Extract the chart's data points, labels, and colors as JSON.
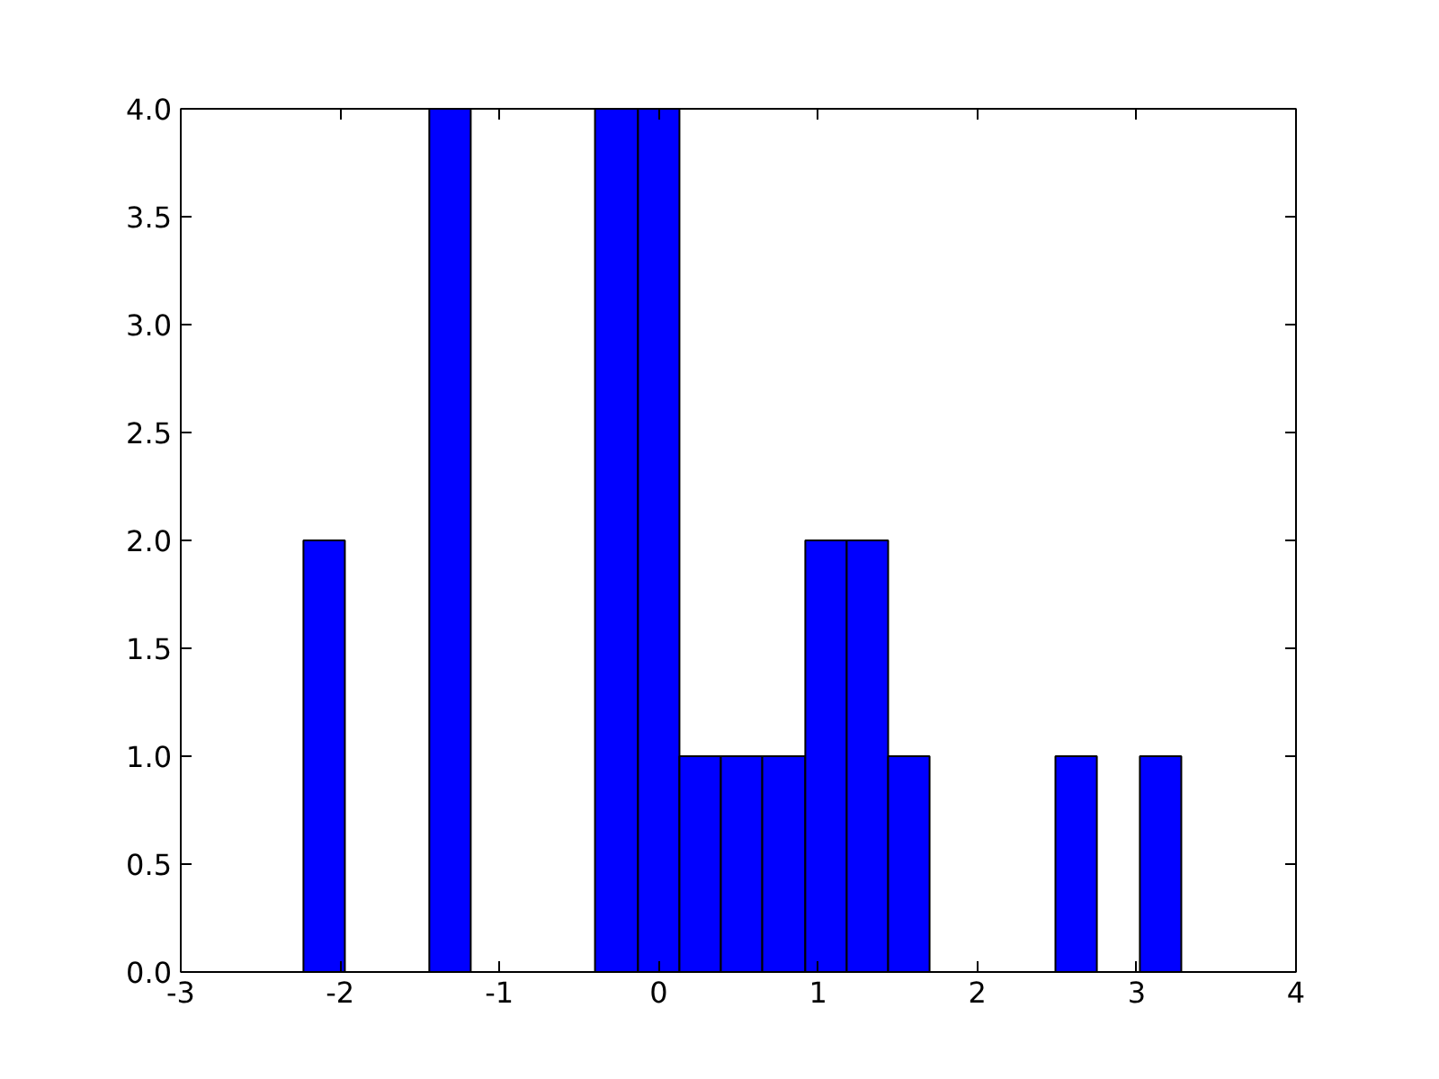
{
  "chart_data": {
    "type": "histogram",
    "bins": [
      -2.23,
      -1.97,
      -1.44,
      -1.18,
      -0.4,
      -0.13,
      0.13,
      0.39,
      0.65,
      0.92,
      1.18,
      1.44,
      1.7,
      2.49,
      2.75,
      3.02,
      3.28
    ],
    "values": [
      2,
      0,
      4,
      0,
      4,
      4,
      1,
      1,
      1,
      2,
      2,
      1,
      0,
      1,
      0,
      1
    ],
    "color": "#0000ff",
    "xlim": [
      -3,
      4
    ],
    "xticks": [
      -3,
      -2,
      -1,
      0,
      1,
      2,
      3,
      4
    ],
    "ylim": [
      0,
      4
    ],
    "yticks": [
      {
        "value": 0,
        "label": "0.0"
      },
      {
        "value": 0.5,
        "label": "0.5"
      },
      {
        "value": 1,
        "label": "1.0"
      },
      {
        "value": 1.5,
        "label": "1.5"
      },
      {
        "value": 2,
        "label": "2.0"
      },
      {
        "value": 2.5,
        "label": "2.5"
      },
      {
        "value": 3,
        "label": "3.0"
      },
      {
        "value": 3.5,
        "label": "3.5"
      },
      {
        "value": 4,
        "label": "4.0"
      }
    ],
    "grid": false
  }
}
